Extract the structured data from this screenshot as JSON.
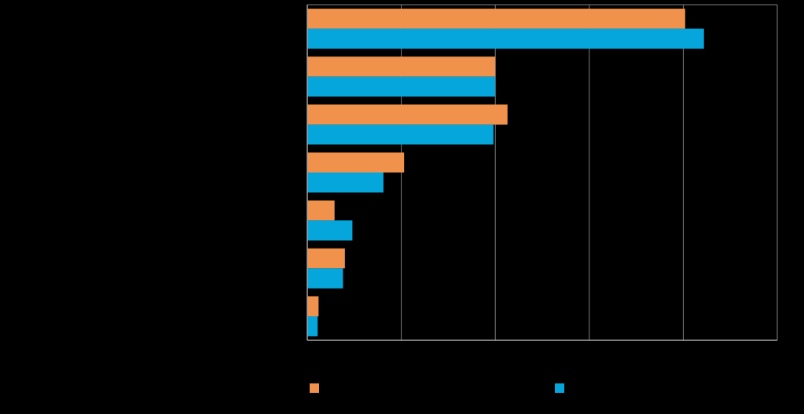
{
  "chart_data": {
    "type": "bar",
    "orientation": "horizontal",
    "categories": [
      "",
      "",
      "",
      "",
      "",
      "",
      ""
    ],
    "series": [
      {
        "name": "",
        "color": "#F0914C",
        "values": [
          40.2,
          20.0,
          21.3,
          10.3,
          2.9,
          4.0,
          1.2
        ]
      },
      {
        "name": "",
        "color": "#05A6DC",
        "values": [
          42.2,
          20.0,
          19.8,
          8.1,
          4.8,
          3.8,
          1.1
        ]
      }
    ],
    "title": "",
    "xlabel": "",
    "ylabel": "",
    "xlim": [
      0,
      50
    ],
    "x_gridlines": [
      10,
      20,
      30,
      40
    ],
    "grid": true,
    "legend_position": "bottom",
    "colors": {
      "background": "#000000",
      "gridline": "#7f7f7f",
      "axis": "#a6a6a6"
    }
  }
}
